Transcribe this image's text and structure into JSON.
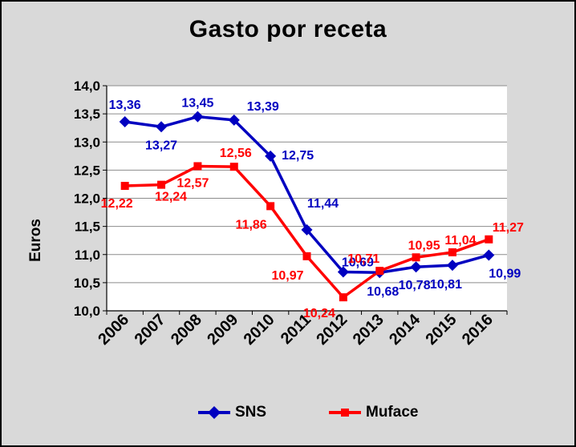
{
  "chart_data": {
    "type": "line",
    "title": "Gasto por receta",
    "xlabel": "",
    "ylabel": "Euros",
    "x": [
      "2006",
      "2007",
      "2008",
      "2009",
      "2010",
      "2011",
      "2012",
      "2013",
      "2014",
      "2015",
      "2016"
    ],
    "ylim": [
      10.0,
      14.0
    ],
    "yticks": [
      "10,0",
      "10,5",
      "11,0",
      "11,5",
      "12,0",
      "12,5",
      "13,0",
      "13,5",
      "14,0"
    ],
    "grid": true,
    "legend": "bottom",
    "series": [
      {
        "name": "SNS",
        "color": "#0000c0",
        "marker": "diamond",
        "values": [
          13.36,
          13.27,
          13.45,
          13.39,
          12.75,
          11.44,
          10.69,
          10.68,
          10.78,
          10.81,
          10.99
        ],
        "labels": [
          "13,36",
          "13,27",
          "13,45",
          "13,39",
          "12,75",
          "11,44",
          "10,69",
          "10,68",
          "10,78",
          "10,81",
          "10,99"
        ]
      },
      {
        "name": "Muface",
        "color": "#ff0000",
        "marker": "square",
        "values": [
          12.22,
          12.24,
          12.57,
          12.56,
          11.86,
          10.97,
          10.24,
          10.71,
          10.95,
          11.04,
          11.27
        ],
        "labels": [
          "12,22",
          "12,24",
          "12,57",
          "12,56",
          "11,86",
          "10,97",
          "10,24",
          "10,71",
          "10,95",
          "11,04",
          "11,27"
        ]
      }
    ]
  }
}
